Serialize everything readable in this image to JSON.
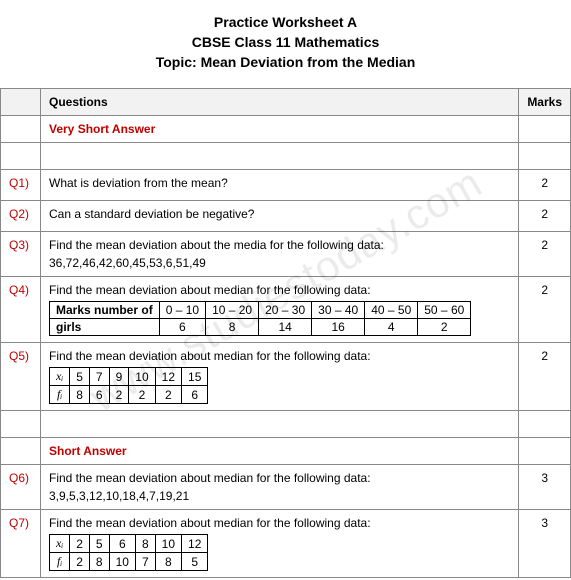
{
  "header": {
    "line1": "Practice Worksheet A",
    "line2": "CBSE Class 11 Mathematics",
    "line3": "Topic: Mean Deviation from the Median"
  },
  "watermark": "www.studiestoday.com",
  "columns": {
    "q": "",
    "question": "Questions",
    "marks": "Marks"
  },
  "sections": {
    "vsa": "Very Short Answer",
    "sa": "Short Answer"
  },
  "q1": {
    "id": "Q1)",
    "text": "What is deviation from the mean?",
    "marks": "2"
  },
  "q2": {
    "id": "Q2)",
    "text": "Can a standard deviation be negative?",
    "marks": "2"
  },
  "q3": {
    "id": "Q3)",
    "text": "Find the mean deviation about the media for the following data:",
    "data": "36,72,46,42,60,45,53,6,51,49",
    "marks": "2"
  },
  "q4": {
    "id": "Q4)",
    "text": "Find the mean deviation about median for the following data:",
    "marks": "2",
    "rowlabel1": "Marks number of",
    "rowlabel2": "girls",
    "h": [
      "0 – 10",
      "10 – 20",
      "20 – 30",
      "30 – 40",
      "40 – 50",
      "50 – 60"
    ],
    "v": [
      "6",
      "8",
      "14",
      "16",
      "4",
      "2"
    ]
  },
  "q5": {
    "id": "Q5)",
    "text": "Find the mean deviation about median for the following data:",
    "marks": "2",
    "xlabel": "xᵢ",
    "flabel": "fᵢ",
    "x": [
      "5",
      "7",
      "9",
      "10",
      "12",
      "15"
    ],
    "f": [
      "8",
      "6",
      "2",
      "2",
      "2",
      "6"
    ]
  },
  "q6": {
    "id": "Q6)",
    "text": "Find the mean deviation about median for the following data:",
    "data": "3,9,5,3,12,10,18,4,7,19,21",
    "marks": "3"
  },
  "q7": {
    "id": "Q7)",
    "text": "Find the mean deviation about median for the following data:",
    "marks": "3",
    "xlabel": "xᵢ",
    "flabel": "fᵢ",
    "x": [
      "2",
      "5",
      "6",
      "8",
      "10",
      "12"
    ],
    "f": [
      "2",
      "8",
      "10",
      "7",
      "8",
      "5"
    ]
  }
}
